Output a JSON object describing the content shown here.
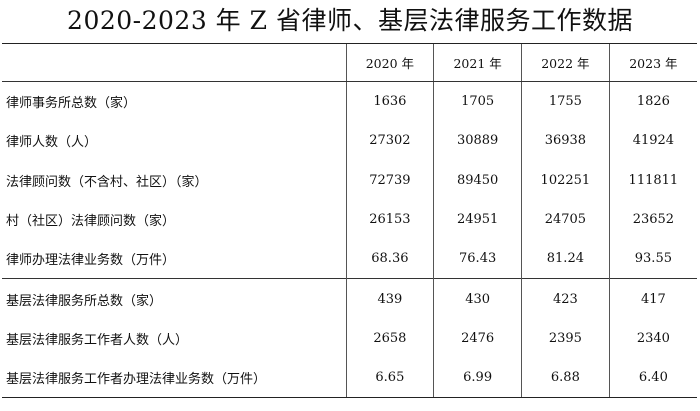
{
  "title": "2020-2023 年 Z 省律师、基层法律服务工作数据",
  "header": [
    "",
    "2020 年",
    "2021 年",
    "2022 年",
    "2023 年"
  ],
  "rows": [
    [
      "律师事务所总数（家）",
      "1636",
      "1705",
      "1755",
      "1826"
    ],
    [
      "律师人数（人）",
      "27302",
      "30889",
      "36938",
      "41924"
    ],
    [
      "法律顾问数（不含村、社区）（家）",
      "72739",
      "89450",
      "102251",
      "111811"
    ],
    [
      "村（社区）法律顾问数（家）",
      "26153",
      "24951",
      "24705",
      "23652"
    ],
    [
      "律师办理法律业务数（万件）",
      "68.36",
      "76.43",
      "81.24",
      "93.55"
    ],
    [
      "基层法律服务所总数（家）",
      "439",
      "430",
      "423",
      "417"
    ],
    [
      "基层法律服务工作者人数（人）",
      "2658",
      "2476",
      "2395",
      "2340"
    ],
    [
      "基层法律服务工作者办理法律业务数（万件）",
      "6.65",
      "6.99",
      "6.88",
      "6.40"
    ]
  ]
}
